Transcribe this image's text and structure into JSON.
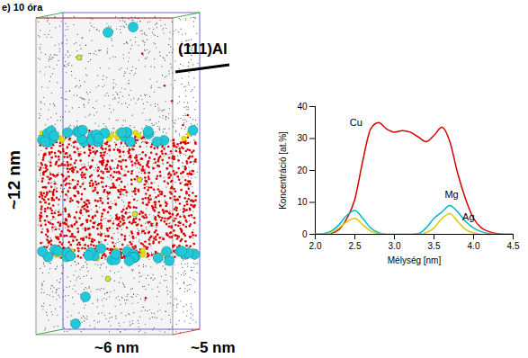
{
  "panel_label": "e) 10 óra",
  "atom_map": {
    "plane_label": "(111)Al",
    "height_label": "~12 nm",
    "width_label": "~6 nm",
    "depth_label": "~5 nm"
  },
  "chart_data": {
    "type": "line",
    "x_label": "Mélység [nm]",
    "y_label": "Koncentráció [at.%]",
    "x": [
      2.0,
      2.1,
      2.2,
      2.3,
      2.4,
      2.5,
      2.6,
      2.7,
      2.8,
      2.9,
      3.0,
      3.1,
      3.2,
      3.3,
      3.4,
      3.5,
      3.6,
      3.7,
      3.8,
      3.9,
      4.0,
      4.1,
      4.2,
      4.3,
      4.4,
      4.5
    ],
    "series": [
      {
        "name": "Cu",
        "color": "#d40000",
        "values": [
          0,
          0,
          0.3,
          1.5,
          5,
          11,
          23,
          33,
          35,
          33,
          32,
          32.5,
          32,
          30.5,
          29,
          31,
          33.5,
          29,
          19,
          11,
          5,
          2,
          0.8,
          0.2,
          0,
          0
        ]
      },
      {
        "name": "Mg",
        "color": "#00b8c8",
        "values": [
          0,
          0.2,
          1,
          3,
          6,
          7.5,
          5,
          2,
          0.5,
          0,
          0,
          0,
          0,
          0.2,
          2,
          5,
          7,
          9,
          7,
          4,
          2,
          0.8,
          0.2,
          0,
          0,
          0
        ]
      },
      {
        "name": "Ag",
        "color": "#d8cc00",
        "values": [
          0,
          0,
          0.5,
          2,
          4,
          5,
          3,
          1,
          0.2,
          0,
          0,
          0,
          0,
          0,
          0.5,
          2,
          5,
          6.5,
          4,
          1.5,
          0.4,
          0,
          0,
          0,
          0,
          0
        ]
      }
    ],
    "xlim": [
      2.0,
      4.5
    ],
    "xticks": [
      {
        "value": 2.0,
        "label": "2.0"
      },
      {
        "value": 2.5,
        "label": "2.5"
      },
      {
        "value": 3.0,
        "label": "3.0"
      },
      {
        "value": 3.5,
        "label": "3.5"
      },
      {
        "value": 4.0,
        "label": "4.0"
      },
      {
        "value": 4.5,
        "label": "4.5"
      }
    ],
    "ylim": [
      0,
      40
    ],
    "yticks": [
      0,
      10,
      20,
      30,
      40
    ],
    "grid": false
  }
}
